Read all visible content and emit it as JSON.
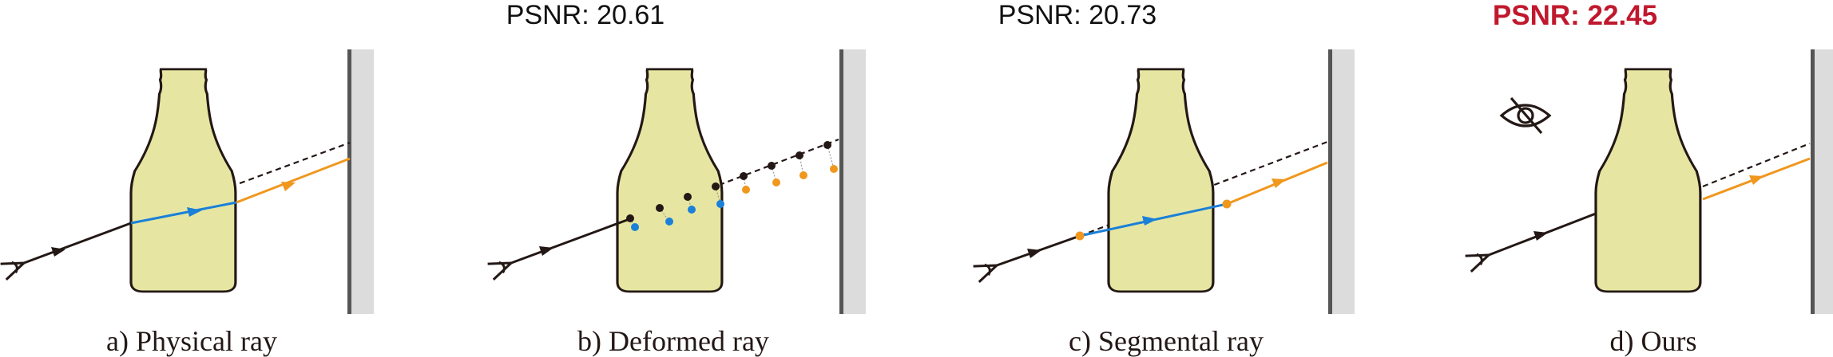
{
  "panels": [
    {
      "id": "a",
      "psnr": "",
      "caption": "a) Physical ray",
      "highlight": false
    },
    {
      "id": "b",
      "psnr": "PSNR: 20.61",
      "caption": "b) Deformed ray",
      "highlight": false
    },
    {
      "id": "c",
      "psnr": "PSNR: 20.73",
      "caption": "c) Segmental ray",
      "highlight": false
    },
    {
      "id": "d",
      "psnr": "PSNR: 22.45",
      "caption": "d) Ours",
      "highlight": true
    }
  ],
  "colors": {
    "bottle_fill": "#e6e6a2",
    "outline": "#231815",
    "refracted_ray": "#1a80d8",
    "exit_ray": "#f0971e",
    "sample_orange": "#f0971e",
    "psnr_best": "#c0182d",
    "wall_fill": "#dcdcdc",
    "wall_edge": "#555555"
  },
  "icons": [
    "eye-icon",
    "eye-slash-icon",
    "arrow-icon",
    "wall-icon"
  ]
}
